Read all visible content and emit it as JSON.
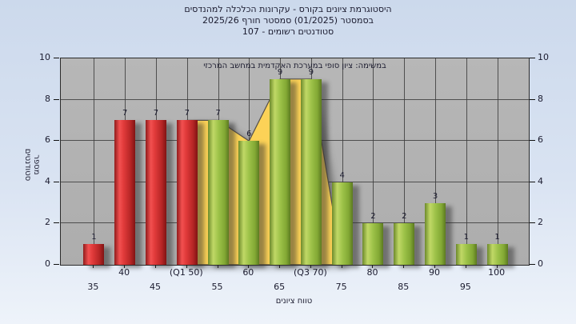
{
  "title": {
    "line1": "היסטוגרמת ציונים בקורס - עקרונות הכלכלה למהנדסים",
    "line2": "בסמסטר (01/2025) סמסטר חורף 2025/26",
    "line3": "סטודנטים רשומים - 107"
  },
  "subtitle": "במשימה: ציון סופי במערכת האקדמית במחשב המרכזי",
  "axes": {
    "y_title": "מספר סטודנטים",
    "x_title": "טווח ציונים",
    "y_ticks": [
      0,
      2,
      4,
      6,
      8,
      10
    ],
    "y_max": 10
  },
  "chart_data": {
    "type": "bar",
    "title": "היסטוגרמת ציונים בקורס - עקרונות הכלכלה למהנדסים",
    "xlabel": "טווח ציונים",
    "ylabel": "מספר סטודנטים",
    "ylim": [
      0,
      10
    ],
    "grid": true,
    "categories": [
      "35",
      "40",
      "45",
      "(Q1 50)",
      "55",
      "60",
      "65",
      "(Q3 70)",
      "75",
      "80",
      "85",
      "90",
      "95",
      "100"
    ],
    "values": [
      1,
      7,
      7,
      7,
      7,
      6,
      9,
      9,
      4,
      2,
      2,
      3,
      1,
      1
    ],
    "bar_colors": [
      "red",
      "red",
      "red",
      "red",
      "green",
      "green",
      "green",
      "green",
      "green",
      "green",
      "green",
      "green",
      "green",
      "green"
    ],
    "area_overlay": {
      "description": "interquartile-range-highlight",
      "from_category": "(Q1 50)",
      "to_category": "(Q3 70)",
      "values": [
        7,
        7,
        6,
        9,
        9
      ],
      "drops_to_zero_at": "75"
    }
  },
  "colors": {
    "bg_top": "#ccd9ec",
    "bg_bottom": "#eef3fa",
    "plot_bg": "#b3b3b3",
    "grid": "#3d3d3d",
    "bar_red": "#e03a3a",
    "bar_green": "#9cc148",
    "area_yellow": "#fcd257",
    "label": "#1b1b2f"
  }
}
